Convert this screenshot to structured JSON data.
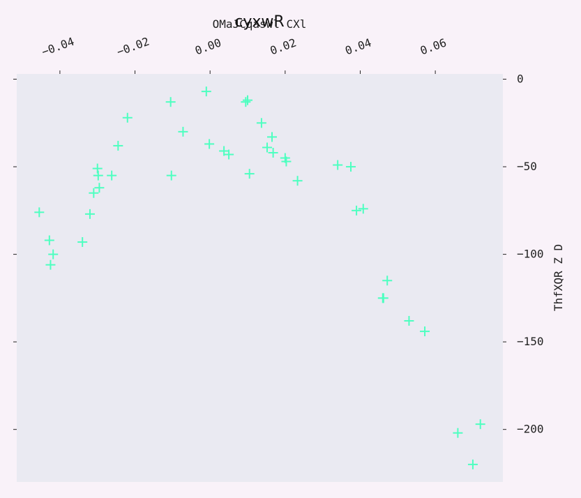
{
  "chart_data": {
    "type": "scatter",
    "title": "cyxwR",
    "xlabel": "OMaJCqaswl CXl",
    "ylabel": "ThfXQR Z D",
    "x_axis_position": "top",
    "y_axis_position": "right",
    "xlim": [
      -0.0515,
      0.078
    ],
    "ylim": [
      -230,
      3
    ],
    "x_ticks": [
      -0.04,
      -0.02,
      0.0,
      0.02,
      0.04,
      0.06
    ],
    "x_tick_labels": [
      "−0.04",
      "−0.02",
      "0.00",
      "0.02",
      "0.04",
      "0.06"
    ],
    "y_ticks": [
      0,
      -50,
      -100,
      -150,
      -200
    ],
    "y_tick_labels": [
      "0",
      "−50",
      "−100",
      "−150",
      "−200"
    ],
    "grid": false,
    "marker": "+",
    "color": "#4dffc0",
    "plot_background": "#eaeaf2",
    "x": [
      -0.0455,
      -0.0428,
      -0.0418,
      -0.0425,
      -0.034,
      -0.032,
      -0.031,
      -0.0295,
      -0.03,
      -0.0298,
      -0.0262,
      -0.0245,
      -0.022,
      -0.0105,
      -0.0103,
      -0.0072,
      -0.001,
      -0.0002,
      0.0037,
      0.005,
      0.0095,
      0.01,
      0.0105,
      0.0137,
      0.0152,
      0.0165,
      0.0168,
      0.02,
      0.0203,
      0.0233,
      0.034,
      0.0375,
      0.039,
      0.0408,
      0.046,
      0.0462,
      0.0472,
      0.053,
      0.0572,
      0.066,
      0.07,
      0.072
    ],
    "y": [
      -76,
      -92,
      -100,
      -106,
      -93,
      -77,
      -65,
      -62,
      -51,
      -55,
      -55,
      -38,
      -22,
      -13,
      -55,
      -30,
      -7,
      -37,
      -41,
      -43,
      -13,
      -12,
      -54,
      -25,
      -39,
      -33,
      -42,
      -45,
      -47,
      -58,
      -49,
      -50,
      -75,
      -74,
      -125,
      -125,
      -115,
      -138,
      -144,
      -202,
      -220,
      -197
    ]
  }
}
